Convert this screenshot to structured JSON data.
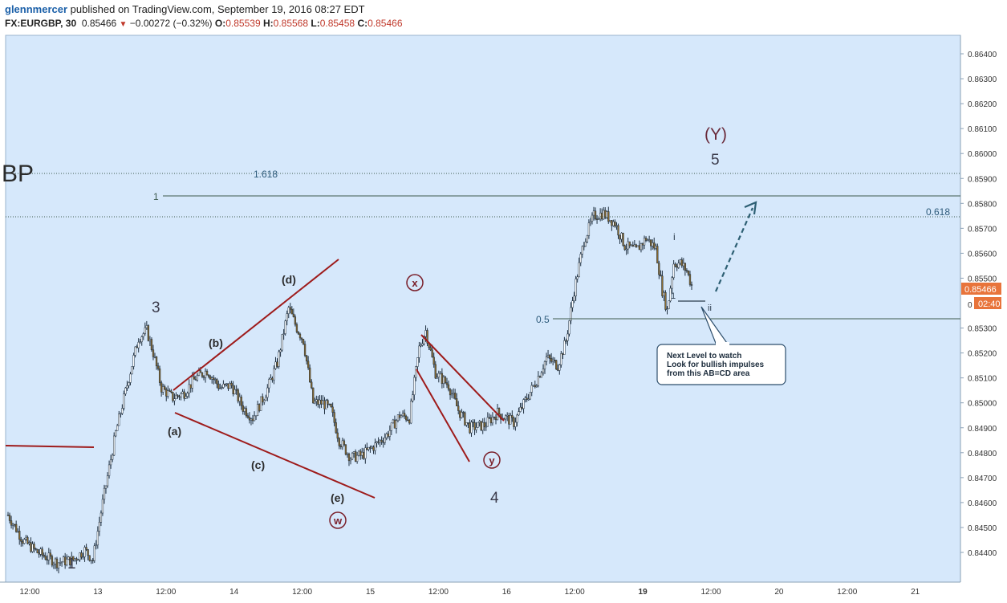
{
  "header": {
    "user": "glennmercer",
    "published_text": "published on TradingView.com, September 19, 2016 08:27 EDT",
    "symbol": "FX:EURGBP, 30",
    "last": "0.85466",
    "change": "−0.00272 (−0.32%)",
    "open_label": "O:",
    "open": "0.85539",
    "high_label": "H:",
    "high": "0.85568",
    "low_label": "L:",
    "low": "0.85458",
    "close_label": "C:",
    "close": "0.85466"
  },
  "colors": {
    "background": "#d6e8fb",
    "candle_up": "#ffffff",
    "candle_down": "#8a6a2e",
    "wick": "#1f2f3f",
    "trendline": "#9e1b1b",
    "fib_line": "#3d5a4e",
    "price_badge": "#e8743b",
    "callout_border": "#2d4e6b",
    "arrow": "#2d5f73",
    "wave_text": "#2b2b2b",
    "wave_Y": "#6a2a3a"
  },
  "chart_data": {
    "type": "candlestick",
    "symbol": "FX:EURGBP",
    "interval": "30",
    "ylim": [
      0.8435,
      0.8645
    ],
    "y_ticks": [
      "0.86400",
      "0.86300",
      "0.86200",
      "0.86100",
      "0.86000",
      "0.85900",
      "0.85800",
      "0.85700",
      "0.85600",
      "0.85500",
      "0.85300",
      "0.85200",
      "0.85100",
      "0.85000",
      "0.84900",
      "0.84800",
      "0.84700",
      "0.84600",
      "0.84500",
      "0.84400"
    ],
    "x_ticks": [
      "12:00",
      "13",
      "12:00",
      "14",
      "12:00",
      "15",
      "12:00",
      "16",
      "12:00",
      "19",
      "12:00",
      "20",
      "12:00",
      "21"
    ],
    "price_label": "0.85466",
    "time_label": "02:40",
    "price_path": [
      [
        0,
        0.8455
      ],
      [
        9,
        0.8445
      ],
      [
        18,
        0.844
      ],
      [
        30,
        0.8436
      ],
      [
        40,
        0.8437
      ],
      [
        47,
        0.8441
      ],
      [
        52,
        0.8437
      ],
      [
        58,
        0.846
      ],
      [
        66,
        0.8488
      ],
      [
        74,
        0.851
      ],
      [
        80,
        0.8526
      ],
      [
        85,
        0.8529
      ],
      [
        89,
        0.852
      ],
      [
        94,
        0.8506
      ],
      [
        101,
        0.8502
      ],
      [
        108,
        0.8504
      ],
      [
        115,
        0.851
      ],
      [
        122,
        0.8513
      ],
      [
        130,
        0.8506
      ],
      [
        137,
        0.8507
      ],
      [
        144,
        0.8498
      ],
      [
        150,
        0.8494
      ],
      [
        158,
        0.8504
      ],
      [
        165,
        0.8516
      ],
      [
        172,
        0.8538
      ],
      [
        177,
        0.853
      ],
      [
        181,
        0.8525
      ],
      [
        187,
        0.85
      ],
      [
        193,
        0.85
      ],
      [
        198,
        0.8497
      ],
      [
        203,
        0.8485
      ],
      [
        210,
        0.8478
      ],
      [
        217,
        0.8479
      ],
      [
        225,
        0.8483
      ],
      [
        232,
        0.8487
      ],
      [
        240,
        0.8495
      ],
      [
        246,
        0.8494
      ],
      [
        252,
        0.8522
      ],
      [
        256,
        0.8529
      ],
      [
        262,
        0.8512
      ],
      [
        270,
        0.8507
      ],
      [
        276,
        0.8497
      ],
      [
        283,
        0.849
      ],
      [
        292,
        0.8491
      ],
      [
        300,
        0.8496
      ],
      [
        310,
        0.8492
      ],
      [
        318,
        0.8502
      ],
      [
        324,
        0.8509
      ],
      [
        330,
        0.8518
      ],
      [
        337,
        0.8515
      ],
      [
        342,
        0.8525
      ],
      [
        347,
        0.8545
      ],
      [
        353,
        0.8565
      ],
      [
        359,
        0.8575
      ],
      [
        365,
        0.8576
      ],
      [
        372,
        0.8572
      ],
      [
        378,
        0.8563
      ],
      [
        385,
        0.8561
      ],
      [
        391,
        0.8566
      ],
      [
        397,
        0.8562
      ],
      [
        401,
        0.8545
      ],
      [
        404,
        0.8537
      ],
      [
        408,
        0.8556
      ],
      [
        412,
        0.8556
      ],
      [
        416,
        0.8553
      ],
      [
        419,
        0.8547
      ]
    ]
  },
  "annotations": {
    "wave_1": "1",
    "wave_3": "3",
    "wave_4": "4",
    "wave_5": "5",
    "wave_Y": "(Y)",
    "wave_a": "(a)",
    "wave_b": "(b)",
    "wave_c": "(c)",
    "wave_d": "(d)",
    "wave_e": "(e)",
    "wave_w": "w",
    "wave_x": "x",
    "wave_y": "y",
    "wave_i": "i",
    "wave_ii": "ii",
    "wave_1_small": "1",
    "fib_1618": "1.618",
    "fib_1": "1",
    "fib_0618": "0.618",
    "fib_05": "0.5",
    "fib_0": "0",
    "symbol_fragment": "BP",
    "callout_lines": [
      "Next Level to watch",
      "Look for bullish impulses",
      "from this AB=CD area"
    ]
  }
}
